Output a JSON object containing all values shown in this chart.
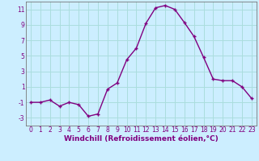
{
  "x": [
    0,
    1,
    2,
    3,
    4,
    5,
    6,
    7,
    8,
    9,
    10,
    11,
    12,
    13,
    14,
    15,
    16,
    17,
    18,
    19,
    20,
    21,
    22,
    23
  ],
  "y": [
    -1,
    -1,
    -0.7,
    -1.5,
    -1,
    -1.3,
    -2.8,
    -2.5,
    0.7,
    1.5,
    4.5,
    6.0,
    9.2,
    11.2,
    11.5,
    11.0,
    9.3,
    7.5,
    4.8,
    2.0,
    1.8,
    1.8,
    1.0,
    -0.5
  ],
  "line_color": "#800080",
  "marker": "+",
  "marker_size": 3,
  "marker_lw": 1.0,
  "background_color": "#cceeff",
  "grid_color": "#aadddd",
  "xlabel": "Windchill (Refroidissement éolien,°C)",
  "ylabel": "",
  "xlim": [
    -0.5,
    23.5
  ],
  "ylim": [
    -4,
    12
  ],
  "xticks": [
    0,
    1,
    2,
    3,
    4,
    5,
    6,
    7,
    8,
    9,
    10,
    11,
    12,
    13,
    14,
    15,
    16,
    17,
    18,
    19,
    20,
    21,
    22,
    23
  ],
  "yticks": [
    -3,
    -1,
    1,
    3,
    5,
    7,
    9,
    11
  ],
  "tick_fontsize": 5.5,
  "xlabel_fontsize": 6.5,
  "line_width": 1.0
}
